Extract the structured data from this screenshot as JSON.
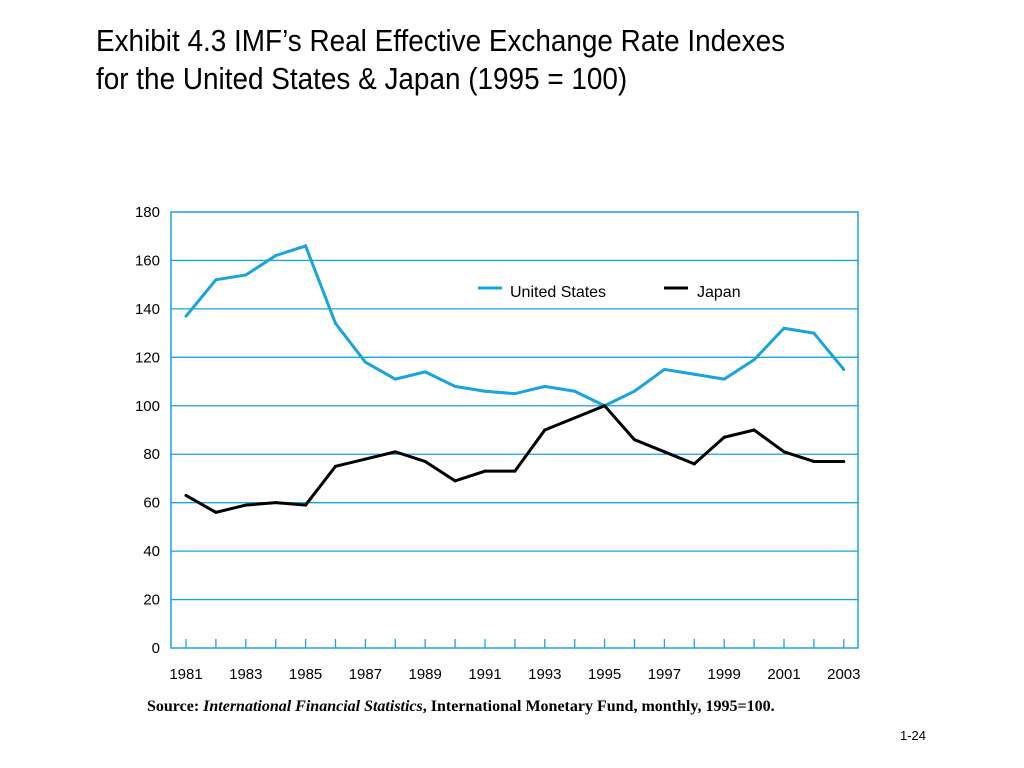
{
  "slide": {
    "title_line1": "Exhibit 4.3  IMF’s Real Effective Exchange Rate Indexes",
    "title_line2": "for the United States & Japan (1995 = 100)",
    "source_label": "Source: ",
    "source_italic": "International Financial Statistics",
    "source_rest": ", International Monetary Fund, monthly, 1995=100.",
    "slide_number": "1-24"
  },
  "colors": {
    "us": "#1aa3e0",
    "japan": "#000000",
    "grid": "#1aa3e0",
    "frame": "#1aa3e0"
  },
  "chart_data": {
    "type": "line",
    "title": "Exhibit 4.3  IMF’s Real Effective Exchange Rate Indexes for the United States & Japan (1995 = 100)",
    "xlabel": "",
    "ylabel": "",
    "ylim": [
      0,
      180
    ],
    "yticks": [
      "0",
      "20",
      "40",
      "60",
      "80",
      "100",
      "120",
      "140",
      "160",
      "180"
    ],
    "xticks": [
      "1981",
      "1983",
      "1985",
      "1987",
      "1989",
      "1991",
      "1993",
      "1995",
      "1997",
      "1999",
      "2001",
      "2003"
    ],
    "grid": true,
    "legend_position": "top-right",
    "x": [
      1981,
      1982,
      1983,
      1984,
      1985,
      1986,
      1987,
      1988,
      1989,
      1990,
      1991,
      1992,
      1993,
      1994,
      1995,
      1996,
      1997,
      1998,
      1999,
      2000,
      2001,
      2002,
      2003
    ],
    "series": [
      {
        "name": "United States",
        "color_key": "us",
        "values": [
          137,
          152,
          154,
          162,
          166,
          134,
          118,
          111,
          114,
          108,
          106,
          105,
          108,
          106,
          100,
          106,
          115,
          113,
          111,
          119,
          132,
          130,
          115
        ]
      },
      {
        "name": "Japan",
        "color_key": "japan",
        "values": [
          63,
          56,
          59,
          60,
          59,
          75,
          78,
          81,
          77,
          69,
          73,
          73,
          90,
          95,
          100,
          86,
          81,
          76,
          87,
          90,
          81,
          77,
          77
        ]
      }
    ]
  }
}
